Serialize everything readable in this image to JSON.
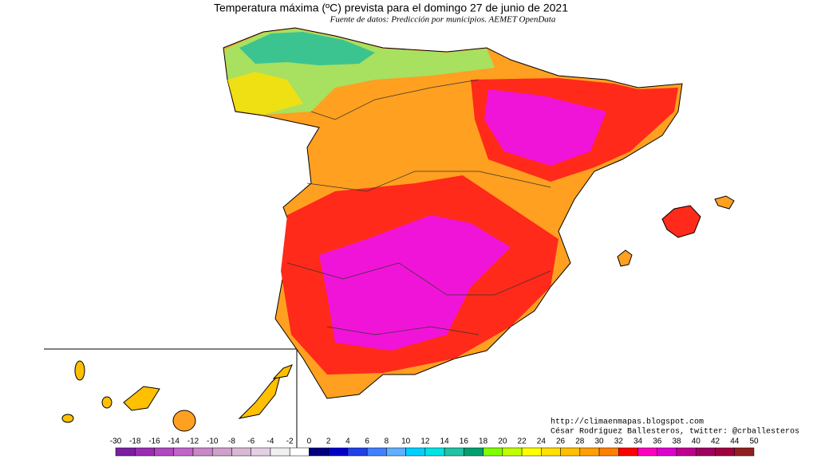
{
  "header": {
    "title": "Temperatura máxima (ºC) prevista para el domingo 27 de junio de 2021",
    "subtitle": "Fuente de datos: Predicción por municipios. AEMET OpenData"
  },
  "credits": {
    "url": "http://climaenmapas.blogspot.com",
    "author": "César Rodríguez Ballesteros, twitter: @crballesteros"
  },
  "colorbar": {
    "labels": [
      -30,
      -18,
      -16,
      -14,
      -12,
      -10,
      -8,
      -6,
      -4,
      -2,
      0,
      2,
      4,
      6,
      8,
      10,
      12,
      14,
      16,
      18,
      20,
      22,
      24,
      26,
      28,
      30,
      32,
      34,
      36,
      38,
      40,
      42,
      44,
      50
    ],
    "colors": [
      "#7a1fa0",
      "#9a2cb4",
      "#b048c0",
      "#c064c8",
      "#c888c8",
      "#d0a0cc",
      "#d8b8d4",
      "#e4d0e4",
      "#f0f0f0",
      "#ffffff",
      "#000080",
      "#0000c8",
      "#2040e8",
      "#4080ff",
      "#60b0ff",
      "#00d0ff",
      "#00e4e4",
      "#20c4a4",
      "#00a070",
      "#80ff00",
      "#c0ff00",
      "#ffff00",
      "#ffe000",
      "#ffc000",
      "#ffa000",
      "#ff8000",
      "#ff0000",
      "#ff00c0",
      "#e000d0",
      "#c00090",
      "#a00060",
      "#a00040",
      "#902020"
    ]
  }
}
